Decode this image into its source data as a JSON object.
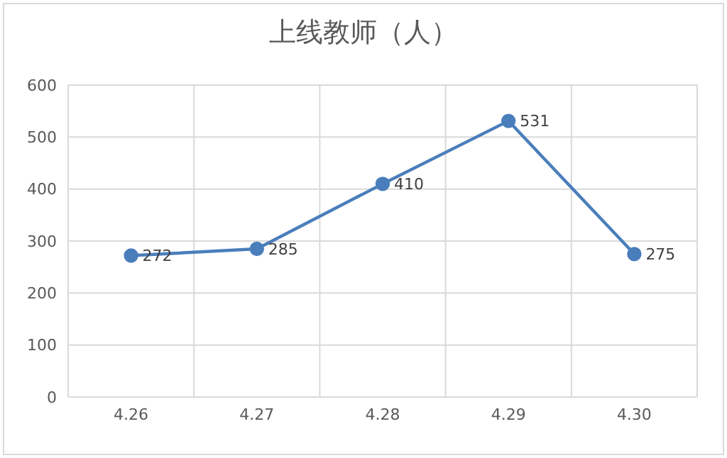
{
  "chart_data": {
    "type": "line",
    "title": "上线教师（人）",
    "categories": [
      "4.26",
      "4.27",
      "4.28",
      "4.29",
      "4.30"
    ],
    "series": [
      {
        "color": "#4a7ebb",
        "values": [
          272,
          285,
          410,
          531,
          275
        ]
      }
    ],
    "ylim": [
      0,
      600
    ],
    "yticks": [
      0,
      100,
      200,
      300,
      400,
      500,
      600
    ],
    "grid": true,
    "legend": false,
    "marker": "circle",
    "line_style": "solid",
    "data_labels": true
  }
}
